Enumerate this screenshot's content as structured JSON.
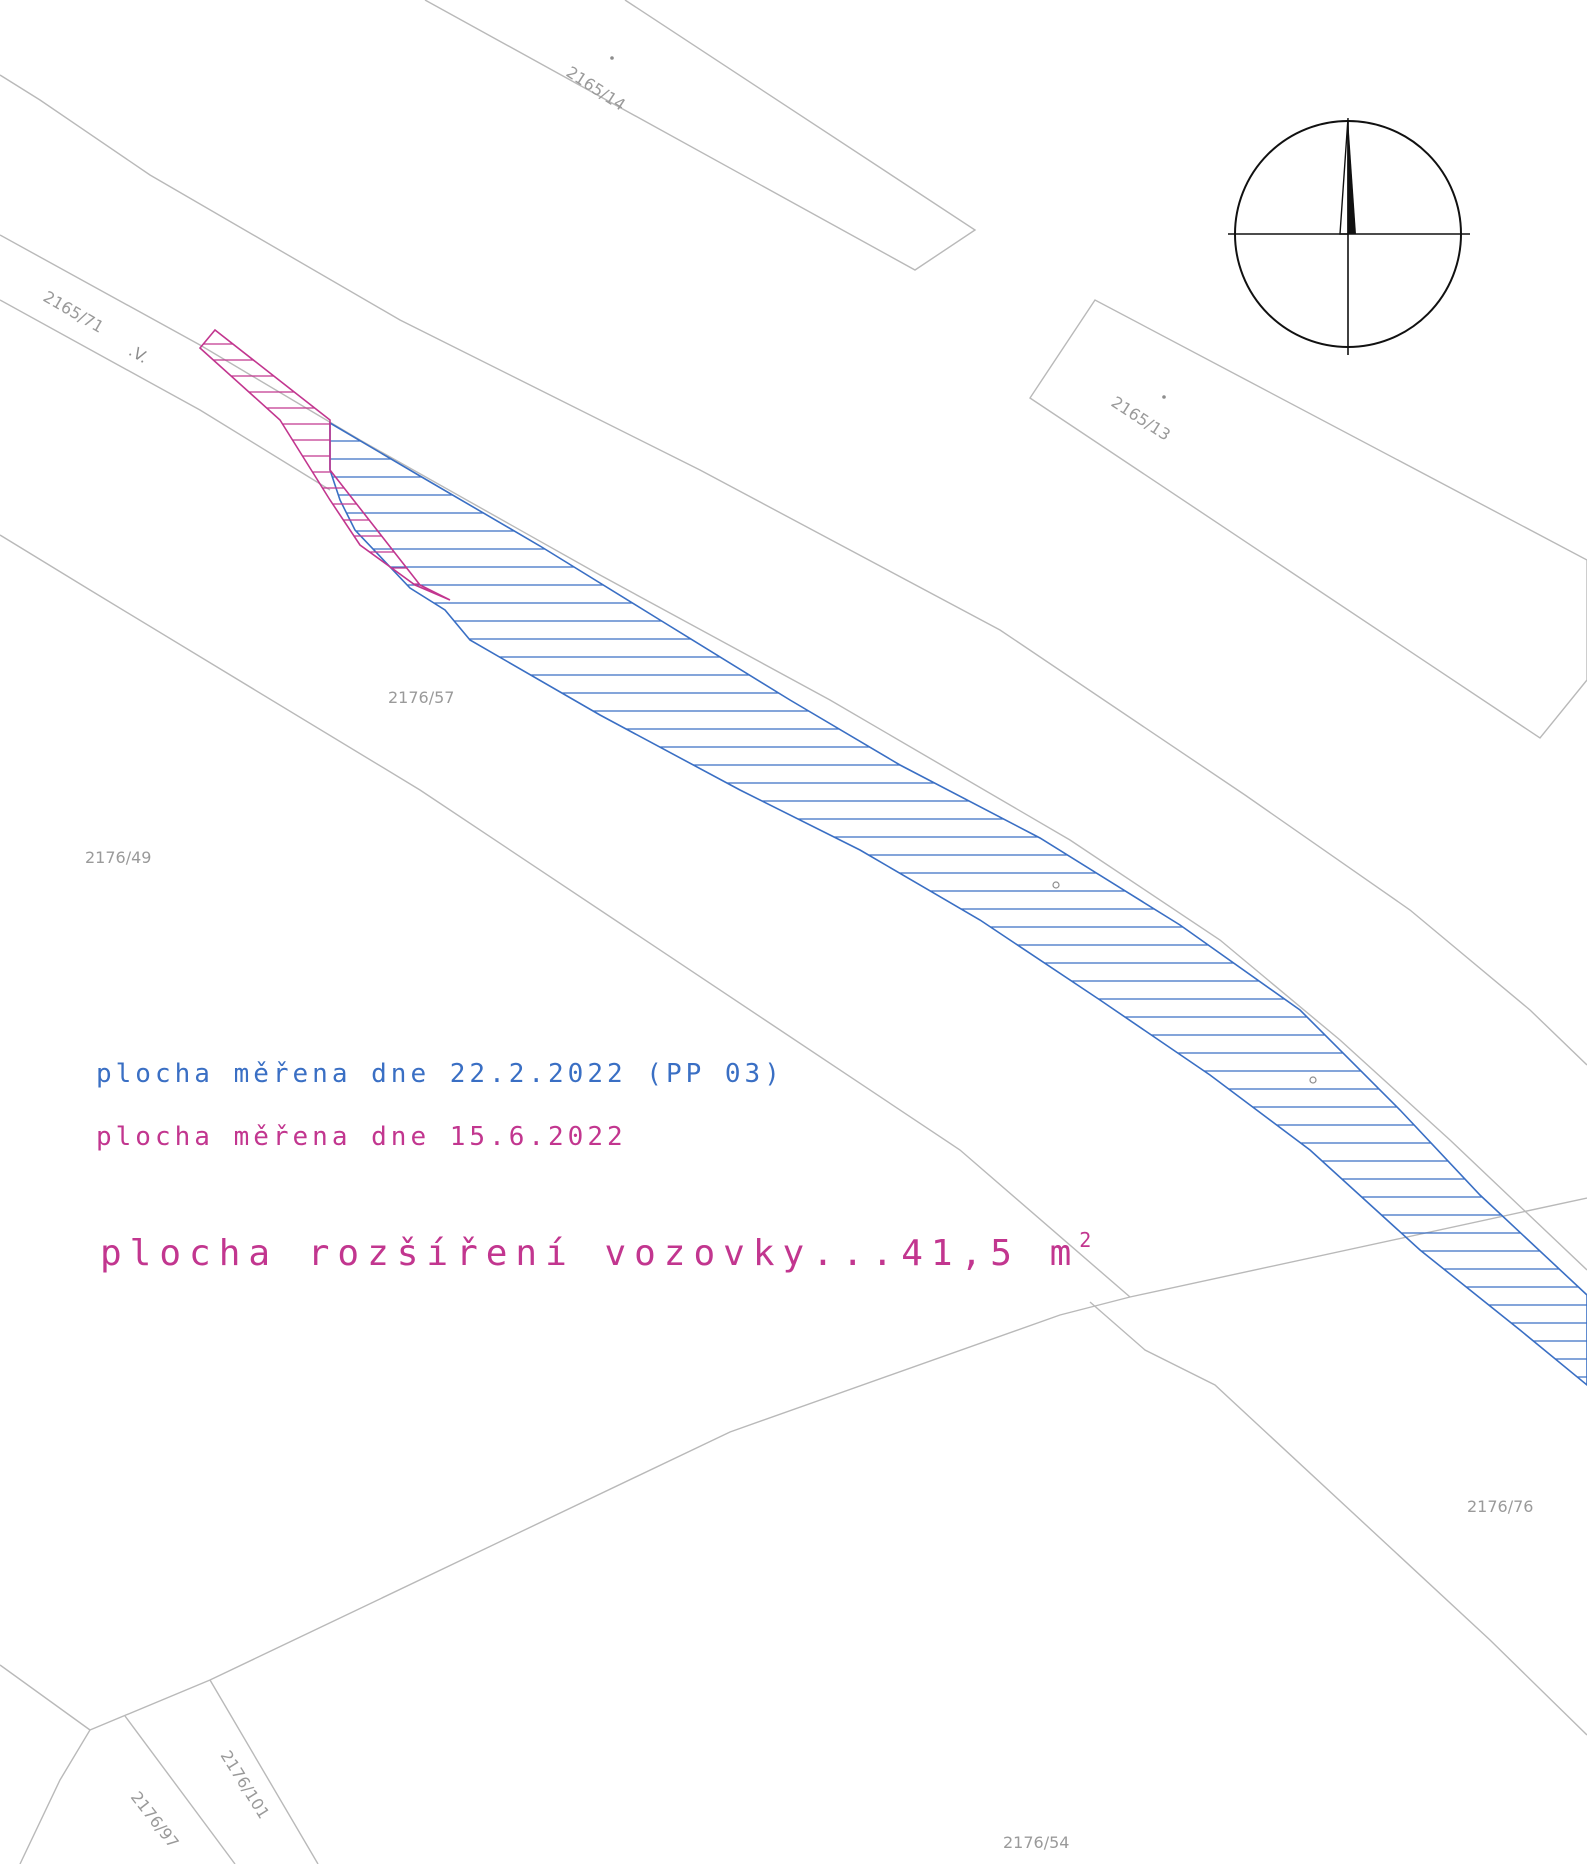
{
  "colors": {
    "parcel_lines": "#b9b9b9",
    "parcel_labels": "#9a9a9a",
    "measured_feb": "#3a6fc4",
    "measured_jun": "#c2368f",
    "north_arrow": "#111111"
  },
  "parcels": {
    "p2165_14": "2165/14",
    "p2165_13": "2165/13",
    "p2165_71": "2165/71",
    "p2176_57": "2176/57",
    "p2176_49": "2176/49",
    "p2176_76": "2176/76",
    "p2176_101": "2176/101",
    "p2176_97": "2176/97",
    "p2176_54": "2176/54"
  },
  "legend": {
    "feb_measurement": "plocha měřena dne 22.2.2022 (PP 03)",
    "jun_measurement": "plocha měřena dne 15.6.2022",
    "area_text": "plocha rozšíření vozovky...41,5 m",
    "area_superscript": "2"
  },
  "icons": {
    "north_arrow": "north-arrow-icon",
    "survey_mark": "survey-mark-icon"
  }
}
